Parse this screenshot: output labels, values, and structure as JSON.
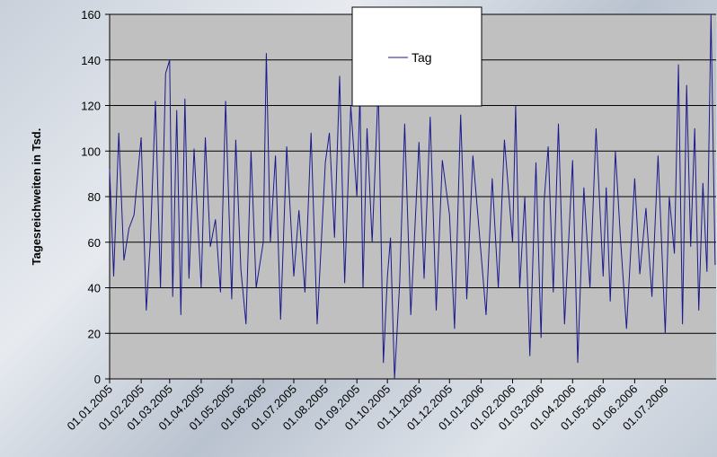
{
  "chart_data": {
    "type": "line",
    "ylabel": "Tagesreichweiten in Tsd.",
    "xlabel": "",
    "ylim": [
      0,
      160
    ],
    "yticks": [
      0,
      20,
      40,
      60,
      80,
      100,
      120,
      140,
      160
    ],
    "xlim": [
      "2005-01-01",
      "2006-08-20"
    ],
    "xtick_labels": [
      "01.01.2005",
      "01.02.2005",
      "01.03.2005",
      "01.04.2005",
      "01.05.2005",
      "01.06.2005",
      "01.07.2005",
      "01.08.2005",
      "01.09.2005",
      "01.10.2005",
      "01.11.2005",
      "01.12.2005",
      "01.01.2006",
      "01.02.2006",
      "01.03.2006",
      "01.04.2006",
      "01.05.2006",
      "01.06.2006",
      "01.07.2006"
    ],
    "grid": true,
    "legend": {
      "position": "top-center"
    },
    "colors": {
      "series": "#1a1a8c",
      "plot_background": "#c0c0c0",
      "gridline": "#000000"
    },
    "series": [
      {
        "name": "Tag",
        "x": [
          "2005-01-01",
          "2005-01-05",
          "2005-01-10",
          "2005-01-15",
          "2005-01-20",
          "2005-01-25",
          "2005-02-01",
          "2005-02-06",
          "2005-02-10",
          "2005-02-15",
          "2005-02-20",
          "2005-02-25",
          "2005-03-01",
          "2005-03-04",
          "2005-03-08",
          "2005-03-12",
          "2005-03-16",
          "2005-03-20",
          "2005-03-25",
          "2005-04-01",
          "2005-04-05",
          "2005-04-10",
          "2005-04-15",
          "2005-04-20",
          "2005-04-25",
          "2005-05-01",
          "2005-05-05",
          "2005-05-10",
          "2005-05-15",
          "2005-05-20",
          "2005-05-25",
          "2005-06-01",
          "2005-06-04",
          "2005-06-08",
          "2005-06-13",
          "2005-06-18",
          "2005-06-24",
          "2005-07-01",
          "2005-07-06",
          "2005-07-12",
          "2005-07-18",
          "2005-07-24",
          "2005-08-01",
          "2005-08-05",
          "2005-08-10",
          "2005-08-15",
          "2005-08-20",
          "2005-08-26",
          "2005-09-01",
          "2005-09-04",
          "2005-09-07",
          "2005-09-11",
          "2005-09-16",
          "2005-09-22",
          "2005-09-27",
          "2005-10-01",
          "2005-10-04",
          "2005-10-08",
          "2005-10-13",
          "2005-10-18",
          "2005-10-24",
          "2005-11-01",
          "2005-11-06",
          "2005-11-12",
          "2005-11-18",
          "2005-11-24",
          "2005-12-01",
          "2005-12-06",
          "2005-12-12",
          "2005-12-18",
          "2005-12-24",
          "2006-01-01",
          "2006-01-06",
          "2006-01-12",
          "2006-01-18",
          "2006-01-24",
          "2006-02-01",
          "2006-02-04",
          "2006-02-08",
          "2006-02-13",
          "2006-02-18",
          "2006-02-24",
          "2006-03-01",
          "2006-03-04",
          "2006-03-08",
          "2006-03-13",
          "2006-03-18",
          "2006-03-24",
          "2006-04-01",
          "2006-04-06",
          "2006-04-12",
          "2006-04-18",
          "2006-04-24",
          "2006-05-01",
          "2006-05-04",
          "2006-05-08",
          "2006-05-13",
          "2006-05-18",
          "2006-05-24",
          "2006-06-01",
          "2006-06-06",
          "2006-06-12",
          "2006-06-18",
          "2006-06-24",
          "2006-07-01",
          "2006-07-05",
          "2006-07-10",
          "2006-07-14",
          "2006-07-18",
          "2006-07-22",
          "2006-07-26",
          "2006-07-30",
          "2006-08-03",
          "2006-08-07",
          "2006-08-11",
          "2006-08-15",
          "2006-08-19"
        ],
        "values": [
          92,
          45,
          108,
          52,
          66,
          72,
          106,
          30,
          60,
          122,
          40,
          134,
          140,
          36,
          118,
          28,
          123,
          44,
          101,
          40,
          106,
          58,
          70,
          38,
          122,
          35,
          105,
          48,
          24,
          100,
          40,
          60,
          143,
          60,
          98,
          26,
          102,
          45,
          74,
          38,
          108,
          24,
          95,
          108,
          62,
          133,
          42,
          120,
          80,
          125,
          40,
          110,
          60,
          128,
          7,
          45,
          62,
          0,
          42,
          112,
          28,
          104,
          44,
          115,
          30,
          96,
          72,
          22,
          116,
          35,
          98,
          55,
          28,
          88,
          40,
          105,
          60,
          120,
          40,
          80,
          10,
          95,
          18,
          78,
          102,
          38,
          112,
          24,
          96,
          7,
          84,
          40,
          110,
          45,
          84,
          34,
          100,
          62,
          22,
          88,
          46,
          75,
          36,
          98,
          20,
          80,
          55,
          138,
          24,
          129,
          58,
          110,
          30,
          86,
          47,
          160,
          50
        ]
      }
    ]
  }
}
